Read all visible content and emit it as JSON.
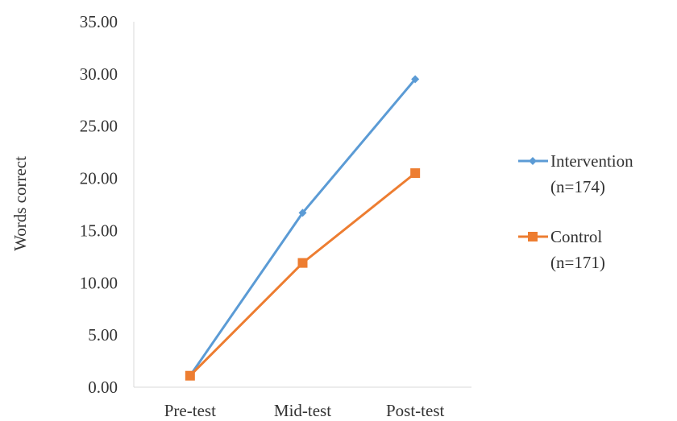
{
  "chart_data": {
    "type": "line",
    "title": "",
    "xlabel": "",
    "ylabel": "Words correct",
    "categories": [
      "Pre-test",
      "Mid-test",
      "Post-test"
    ],
    "ylim": [
      0,
      35
    ],
    "yticks": [
      "0.00",
      "5.00",
      "10.00",
      "15.00",
      "20.00",
      "25.00",
      "30.00",
      "35.00"
    ],
    "grid": false,
    "legend_position": "right",
    "series": [
      {
        "name_line1": "Intervention",
        "name_line2": "(n=174)",
        "values": [
          1.1,
          16.7,
          29.5
        ],
        "color": "#5B9BD5",
        "marker": "diamond"
      },
      {
        "name_line1": "Control",
        "name_line2": "(n=171)",
        "values": [
          1.1,
          11.9,
          20.5
        ],
        "color": "#ED7D31",
        "marker": "square"
      }
    ]
  }
}
